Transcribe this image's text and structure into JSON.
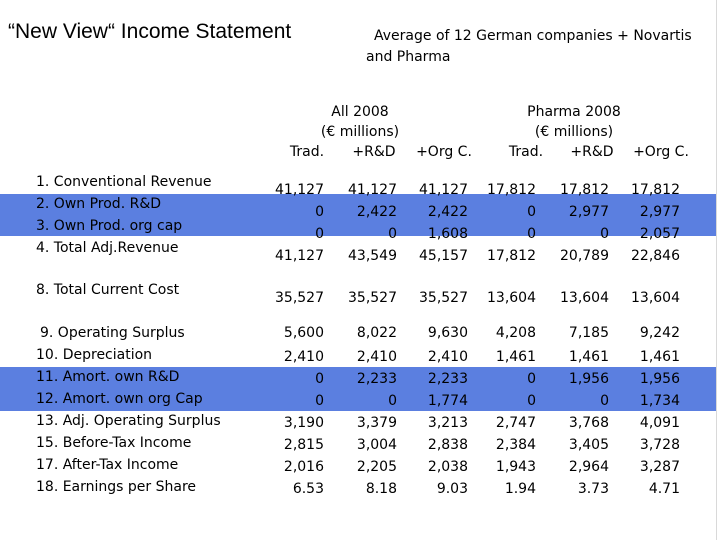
{
  "title": "“New View“ Income Statement",
  "subtitle": {
    "line1": "Average of 12 German companies + Novartis",
    "line2": "and Pharma"
  },
  "headers": {
    "group1": {
      "line1": "All 2008",
      "line2": "(€ millions)"
    },
    "group2": {
      "line1": "Pharma 2008",
      "line2": "(€ millions)"
    },
    "columns": [
      "Trad.",
      "+R&D",
      "+Org C.",
      "Trad.",
      "+R&D",
      "+Org C."
    ]
  },
  "highlight_color": "#5b7fe0",
  "rows": [
    {
      "label": "1. Conventional Revenue",
      "values": [
        "41,127",
        "41,127",
        "41,127",
        "17,812",
        "17,812",
        "17,812"
      ]
    },
    {
      "label": "2. Own Prod. R&D",
      "values": [
        "0",
        "2,422",
        "2,422",
        "0",
        "2,977",
        "2,977"
      ]
    },
    {
      "label": "3. Own Prod. org cap",
      "values": [
        "0",
        "0",
        "1,608",
        "0",
        "0",
        "2,057"
      ]
    },
    {
      "label": "4. Total Adj.Revenue",
      "values": [
        "41,127",
        "43,549",
        "45,157",
        "17,812",
        "20,789",
        "22,846"
      ]
    },
    {
      "label": "8. Total Current Cost",
      "values": [
        "35,527",
        "35,527",
        "35,527",
        "13,604",
        "13,604",
        "13,604"
      ]
    },
    {
      "label": "9. Operating Surplus",
      "values": [
        "5,600",
        "8,022",
        "9,630",
        "4,208",
        "7,185",
        "9,242"
      ]
    },
    {
      "label": "10. Depreciation",
      "values": [
        "2,410",
        "2,410",
        "2,410",
        "1,461",
        "1,461",
        "1,461"
      ]
    },
    {
      "label": "11. Amort. own R&D",
      "values": [
        "0",
        "2,233",
        "2,233",
        "0",
        "1,956",
        "1,956"
      ]
    },
    {
      "label": "12. Amort. own org Cap",
      "values": [
        "0",
        "0",
        "1,774",
        "0",
        "0",
        "1,734"
      ]
    },
    {
      "label": "13. Adj. Operating Surplus",
      "values": [
        "3,190",
        "3,379",
        "3,213",
        "2,747",
        "3,768",
        "4,091"
      ]
    },
    {
      "label": "15. Before-Tax Income",
      "values": [
        "2,815",
        "3,004",
        "2,838",
        "2,384",
        "3,405",
        "3,728"
      ]
    },
    {
      "label": "17. After-Tax Income",
      "values": [
        "2,016",
        "2,205",
        "2,038",
        "1,943",
        "2,964",
        "3,287"
      ]
    },
    {
      "label": "18. Earnings per Share",
      "values": [
        "6.53",
        "8.18",
        "9.03",
        "1.94",
        "3.73",
        "4.71"
      ]
    }
  ]
}
